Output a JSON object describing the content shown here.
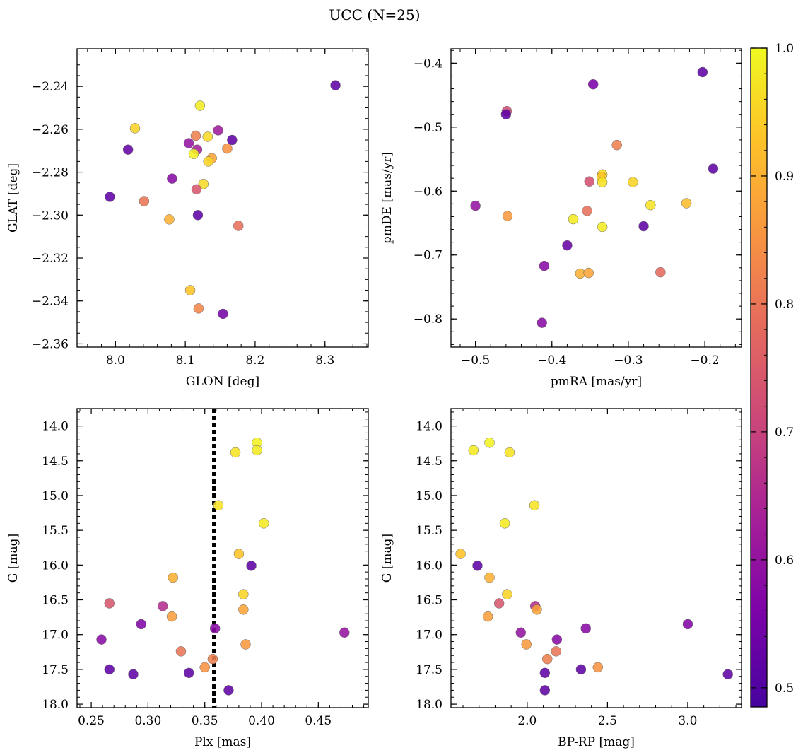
{
  "figure": {
    "title": "UCC (N=25)"
  },
  "colorbar": {
    "range": [
      0.485,
      1.0
    ],
    "ticks": [
      0.5,
      0.6,
      0.7,
      0.8,
      0.9,
      1.0
    ],
    "tick_labels": [
      "0.5",
      "0.6",
      "0.7",
      "0.8",
      "0.9",
      "1.0"
    ],
    "colormap": "plasma"
  },
  "chart_data": [
    {
      "type": "scatter",
      "xlabel": "GLON [deg]",
      "ylabel": "GLAT [deg]",
      "xlim": [
        7.945,
        8.362
      ],
      "ylim": [
        -2.3615,
        -2.2225
      ],
      "invert_y": false,
      "xticks": [
        8.0,
        8.1,
        8.2,
        8.3
      ],
      "xtick_labels": [
        "8.0",
        "8.1",
        "8.2",
        "8.3"
      ],
      "yticks": [
        -2.36,
        -2.34,
        -2.32,
        -2.3,
        -2.28,
        -2.26,
        -2.24
      ],
      "ytick_labels": [
        "−2.36",
        "−2.34",
        "−2.32",
        "−2.30",
        "−2.28",
        "−2.26",
        "−2.24"
      ],
      "points": [
        {
          "x": 8.315,
          "y": -2.2395,
          "c": 0.52
        },
        {
          "x": 8.121,
          "y": -2.249,
          "c": 0.98
        },
        {
          "x": 8.028,
          "y": -2.2595,
          "c": 0.95
        },
        {
          "x": 8.147,
          "y": -2.2605,
          "c": 0.62
        },
        {
          "x": 8.132,
          "y": -2.2635,
          "c": 0.96
        },
        {
          "x": 8.115,
          "y": -2.263,
          "c": 0.82
        },
        {
          "x": 8.167,
          "y": -2.265,
          "c": 0.52
        },
        {
          "x": 8.105,
          "y": -2.2665,
          "c": 0.6
        },
        {
          "x": 8.018,
          "y": -2.2695,
          "c": 0.53
        },
        {
          "x": 8.16,
          "y": -2.269,
          "c": 0.85
        },
        {
          "x": 8.117,
          "y": -2.2695,
          "c": 0.63
        },
        {
          "x": 8.112,
          "y": -2.2715,
          "c": 0.99
        },
        {
          "x": 8.138,
          "y": -2.2735,
          "c": 0.88
        },
        {
          "x": 8.133,
          "y": -2.275,
          "c": 0.95
        },
        {
          "x": 8.081,
          "y": -2.283,
          "c": 0.58
        },
        {
          "x": 8.126,
          "y": -2.2855,
          "c": 0.96
        },
        {
          "x": 8.116,
          "y": -2.288,
          "c": 0.74
        },
        {
          "x": 7.992,
          "y": -2.2915,
          "c": 0.52
        },
        {
          "x": 8.041,
          "y": -2.2935,
          "c": 0.8
        },
        {
          "x": 8.118,
          "y": -2.3,
          "c": 0.52
        },
        {
          "x": 8.077,
          "y": -2.302,
          "c": 0.9
        },
        {
          "x": 8.176,
          "y": -2.305,
          "c": 0.79
        },
        {
          "x": 8.107,
          "y": -2.335,
          "c": 0.93
        },
        {
          "x": 8.119,
          "y": -2.3435,
          "c": 0.83
        },
        {
          "x": 8.154,
          "y": -2.346,
          "c": 0.55
        }
      ]
    },
    {
      "type": "scatter",
      "xlabel": "pmRA [mas/yr]",
      "ylabel": "pmDE [mas/yr]",
      "xlim": [
        -0.532,
        -0.152
      ],
      "ylim": [
        -0.844,
        -0.3775
      ],
      "invert_y": false,
      "xticks": [
        -0.5,
        -0.4,
        -0.3,
        -0.2
      ],
      "xtick_labels": [
        "−0.5",
        "−0.4",
        "−0.3",
        "−0.2"
      ],
      "yticks": [
        -0.8,
        -0.7,
        -0.6,
        -0.5,
        -0.4
      ],
      "ytick_labels": [
        "−0.8",
        "−0.7",
        "−0.6",
        "−0.5",
        "−0.4"
      ],
      "points": [
        {
          "x": -0.203,
          "y": -0.414,
          "c": 0.52
        },
        {
          "x": -0.346,
          "y": -0.433,
          "c": 0.56
        },
        {
          "x": -0.459,
          "y": -0.475,
          "c": 0.72
        },
        {
          "x": -0.46,
          "y": -0.48,
          "c": 0.52
        },
        {
          "x": -0.315,
          "y": -0.528,
          "c": 0.82
        },
        {
          "x": -0.189,
          "y": -0.565,
          "c": 0.52
        },
        {
          "x": -0.334,
          "y": -0.574,
          "c": 0.96
        },
        {
          "x": -0.335,
          "y": -0.578,
          "c": 0.93
        },
        {
          "x": -0.351,
          "y": -0.585,
          "c": 0.73
        },
        {
          "x": -0.334,
          "y": -0.586,
          "c": 0.97
        },
        {
          "x": -0.294,
          "y": -0.586,
          "c": 0.95
        },
        {
          "x": -0.5,
          "y": -0.623,
          "c": 0.6
        },
        {
          "x": -0.224,
          "y": -0.619,
          "c": 0.92
        },
        {
          "x": -0.271,
          "y": -0.622,
          "c": 0.97
        },
        {
          "x": -0.354,
          "y": -0.631,
          "c": 0.79
        },
        {
          "x": -0.458,
          "y": -0.639,
          "c": 0.86
        },
        {
          "x": -0.372,
          "y": -0.644,
          "c": 0.98
        },
        {
          "x": -0.28,
          "y": -0.655,
          "c": 0.52
        },
        {
          "x": -0.334,
          "y": -0.656,
          "c": 0.98
        },
        {
          "x": -0.38,
          "y": -0.685,
          "c": 0.53
        },
        {
          "x": -0.41,
          "y": -0.717,
          "c": 0.58
        },
        {
          "x": -0.258,
          "y": -0.727,
          "c": 0.78
        },
        {
          "x": -0.363,
          "y": -0.729,
          "c": 0.9
        },
        {
          "x": -0.352,
          "y": -0.728,
          "c": 0.88
        },
        {
          "x": -0.413,
          "y": -0.806,
          "c": 0.58
        }
      ]
    },
    {
      "type": "scatter",
      "xlabel": "Plx [mas]",
      "ylabel": "G [mag]",
      "xlim": [
        0.2375,
        0.494
      ],
      "ylim": [
        18.05,
        13.75
      ],
      "invert_y": true,
      "xticks": [
        0.25,
        0.3,
        0.35,
        0.4,
        0.45
      ],
      "xtick_labels": [
        "0.25",
        "0.30",
        "0.35",
        "0.40",
        "0.45"
      ],
      "yticks": [
        14.0,
        14.5,
        15.0,
        15.5,
        16.0,
        16.5,
        17.0,
        17.5,
        18.0
      ],
      "ytick_labels": [
        "14.0",
        "14.5",
        "15.0",
        "15.5",
        "16.0",
        "16.5",
        "17.0",
        "17.5",
        "18.0"
      ],
      "vline": 0.358,
      "points": [
        {
          "x": 0.396,
          "y": 14.24,
          "c": 0.99
        },
        {
          "x": 0.377,
          "y": 14.38,
          "c": 0.97
        },
        {
          "x": 0.396,
          "y": 14.35,
          "c": 0.98
        },
        {
          "x": 0.362,
          "y": 15.14,
          "c": 0.97
        },
        {
          "x": 0.402,
          "y": 15.4,
          "c": 0.98
        },
        {
          "x": 0.38,
          "y": 15.84,
          "c": 0.93
        },
        {
          "x": 0.391,
          "y": 16.01,
          "c": 0.52
        },
        {
          "x": 0.322,
          "y": 16.18,
          "c": 0.9
        },
        {
          "x": 0.384,
          "y": 16.42,
          "c": 0.95
        },
        {
          "x": 0.266,
          "y": 16.55,
          "c": 0.74
        },
        {
          "x": 0.313,
          "y": 16.59,
          "c": 0.66
        },
        {
          "x": 0.384,
          "y": 16.64,
          "c": 0.88
        },
        {
          "x": 0.321,
          "y": 16.74,
          "c": 0.87
        },
        {
          "x": 0.294,
          "y": 16.85,
          "c": 0.57
        },
        {
          "x": 0.359,
          "y": 16.91,
          "c": 0.58
        },
        {
          "x": 0.473,
          "y": 16.97,
          "c": 0.6
        },
        {
          "x": 0.259,
          "y": 17.07,
          "c": 0.58
        },
        {
          "x": 0.386,
          "y": 17.14,
          "c": 0.86
        },
        {
          "x": 0.329,
          "y": 17.24,
          "c": 0.8
        },
        {
          "x": 0.357,
          "y": 17.35,
          "c": 0.82
        },
        {
          "x": 0.35,
          "y": 17.47,
          "c": 0.85
        },
        {
          "x": 0.266,
          "y": 17.5,
          "c": 0.52
        },
        {
          "x": 0.336,
          "y": 17.55,
          "c": 0.52
        },
        {
          "x": 0.287,
          "y": 17.57,
          "c": 0.52
        },
        {
          "x": 0.371,
          "y": 17.8,
          "c": 0.52
        }
      ]
    },
    {
      "type": "scatter",
      "xlabel": "BP-RP [mag]",
      "ylabel": "G [mag]",
      "xlim": [
        1.525,
        3.335
      ],
      "ylim": [
        18.05,
        13.75
      ],
      "invert_y": true,
      "xticks": [
        2.0,
        2.5,
        3.0
      ],
      "xtick_labels": [
        "2.0",
        "2.5",
        "3.0"
      ],
      "yticks": [
        14.0,
        14.5,
        15.0,
        15.5,
        16.0,
        16.5,
        17.0,
        17.5,
        18.0
      ],
      "ytick_labels": [
        "14.0",
        "14.5",
        "15.0",
        "15.5",
        "16.0",
        "16.5",
        "17.0",
        "17.5",
        "18.0"
      ],
      "points": [
        {
          "x": 1.765,
          "y": 14.24,
          "c": 0.99
        },
        {
          "x": 1.665,
          "y": 14.35,
          "c": 0.98
        },
        {
          "x": 1.89,
          "y": 14.38,
          "c": 0.97
        },
        {
          "x": 2.045,
          "y": 15.14,
          "c": 0.97
        },
        {
          "x": 1.86,
          "y": 15.4,
          "c": 0.98
        },
        {
          "x": 1.585,
          "y": 15.84,
          "c": 0.93
        },
        {
          "x": 1.69,
          "y": 16.01,
          "c": 0.52
        },
        {
          "x": 1.765,
          "y": 16.18,
          "c": 0.9
        },
        {
          "x": 1.875,
          "y": 16.42,
          "c": 0.95
        },
        {
          "x": 1.825,
          "y": 16.55,
          "c": 0.74
        },
        {
          "x": 2.05,
          "y": 16.59,
          "c": 0.66
        },
        {
          "x": 2.06,
          "y": 16.64,
          "c": 0.88
        },
        {
          "x": 1.755,
          "y": 16.74,
          "c": 0.87
        },
        {
          "x": 3.0,
          "y": 16.85,
          "c": 0.57
        },
        {
          "x": 2.365,
          "y": 16.91,
          "c": 0.58
        },
        {
          "x": 1.96,
          "y": 16.97,
          "c": 0.6
        },
        {
          "x": 2.185,
          "y": 17.07,
          "c": 0.58
        },
        {
          "x": 1.995,
          "y": 17.14,
          "c": 0.86
        },
        {
          "x": 2.18,
          "y": 17.24,
          "c": 0.8
        },
        {
          "x": 2.125,
          "y": 17.35,
          "c": 0.82
        },
        {
          "x": 2.44,
          "y": 17.47,
          "c": 0.85
        },
        {
          "x": 2.335,
          "y": 17.5,
          "c": 0.52
        },
        {
          "x": 2.11,
          "y": 17.55,
          "c": 0.52
        },
        {
          "x": 3.25,
          "y": 17.57,
          "c": 0.52
        },
        {
          "x": 2.11,
          "y": 17.8,
          "c": 0.52
        }
      ]
    }
  ]
}
